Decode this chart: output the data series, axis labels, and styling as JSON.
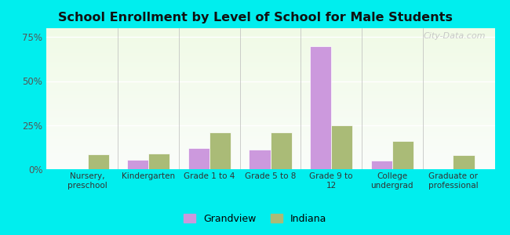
{
  "title": "School Enrollment by Level of School for Male Students",
  "categories": [
    "Nursery,\npreschool",
    "Kindergarten",
    "Grade 1 to 4",
    "Grade 5 to 8",
    "Grade 9 to\n12",
    "College\nundergrad",
    "Graduate or\nprofessional"
  ],
  "grandview": [
    0.0,
    5.5,
    12.0,
    11.0,
    70.0,
    5.0,
    0.0
  ],
  "indiana": [
    8.5,
    9.0,
    21.0,
    21.0,
    25.0,
    16.0,
    8.0
  ],
  "grandview_color": "#cc99dd",
  "indiana_color": "#aabb77",
  "bar_edge_color": "#ffffff",
  "title_color": "#111111",
  "title_fontsize": 11.5,
  "ylabel_ticks": [
    "0%",
    "25%",
    "50%",
    "75%"
  ],
  "ytick_values": [
    0,
    25,
    50,
    75
  ],
  "ylim": [
    0,
    80
  ],
  "background_outer": "#00eeee",
  "grid_color": "#ffffff",
  "legend_grandview": "Grandview",
  "legend_indiana": "Indiana",
  "bar_width": 0.35,
  "watermark": "City-Data.com"
}
